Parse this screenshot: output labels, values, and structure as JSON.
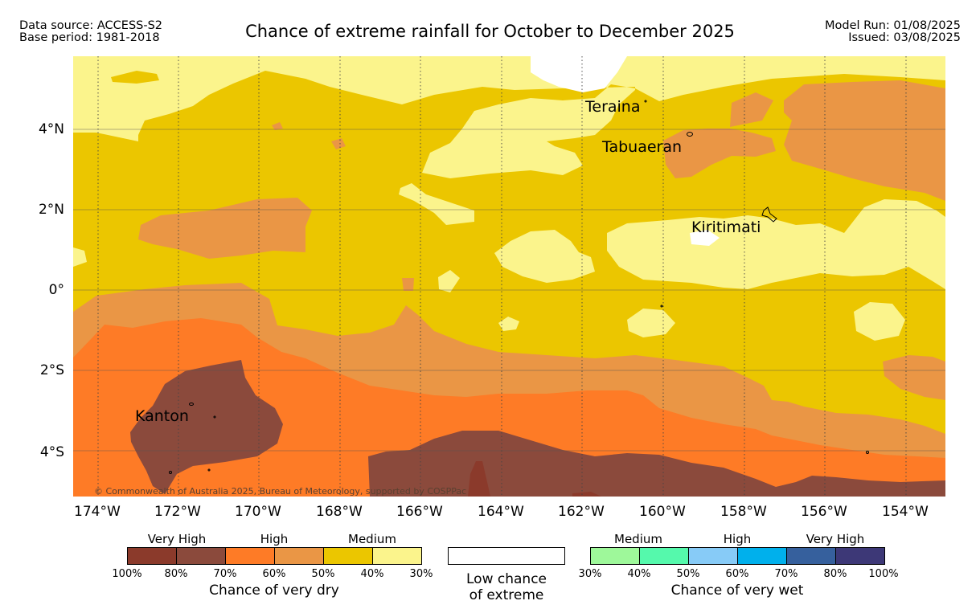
{
  "header": {
    "data_source": "Data source: ACCESS-S2",
    "base_period": "Base period: 1981-2018",
    "title": "Chance of extreme rainfall for October to December 2025",
    "model_run": "Model Run: 01/08/2025",
    "issued": "Issued: 03/08/2025"
  },
  "map": {
    "lat_ticks": [
      "4°N",
      "2°N",
      "0°",
      "2°S",
      "4°S"
    ],
    "lon_ticks": [
      "174°W",
      "172°W",
      "170°W",
      "168°W",
      "166°W",
      "164°W",
      "162°W",
      "160°W",
      "158°W",
      "156°W",
      "154°W"
    ],
    "places": [
      "Teraina",
      "Tabuaeran",
      "Kiritimati",
      "Kanton"
    ],
    "copyright": "© Commonwealth of Australia 2025, Bureau of Meteorology, supported by COSPPac",
    "colors": {
      "dry_80_100": "#8b3a2b",
      "dry_70_80": "#8b4a3c",
      "dry_60_70": "#fe7b26",
      "dry_50_60": "#ea9645",
      "dry_40_50": "#ebc600",
      "dry_30_40": "#fbf48c",
      "low": "#ffffff"
    }
  },
  "legend": {
    "dry": {
      "categories": [
        "Very High",
        "High",
        "Medium"
      ],
      "ticks": [
        "100%",
        "80%",
        "70%",
        "60%",
        "50%",
        "40%",
        "30%"
      ],
      "label": "Chance of very dry",
      "colors": [
        "#8b3a2b",
        "#8b4a3c",
        "#fe7b26",
        "#ea9645",
        "#ebc600",
        "#fbf48c"
      ]
    },
    "low": {
      "label_line1": "Low chance",
      "label_line2": "of extreme",
      "color": "#ffffff"
    },
    "wet": {
      "categories": [
        "Medium",
        "High",
        "Very High"
      ],
      "ticks": [
        "30%",
        "40%",
        "50%",
        "60%",
        "70%",
        "80%",
        "100%"
      ],
      "label": "Chance of very wet",
      "colors": [
        "#9ef89a",
        "#55f9ac",
        "#87cbf7",
        "#00b0ec",
        "#36609d",
        "#3d3877"
      ]
    }
  }
}
